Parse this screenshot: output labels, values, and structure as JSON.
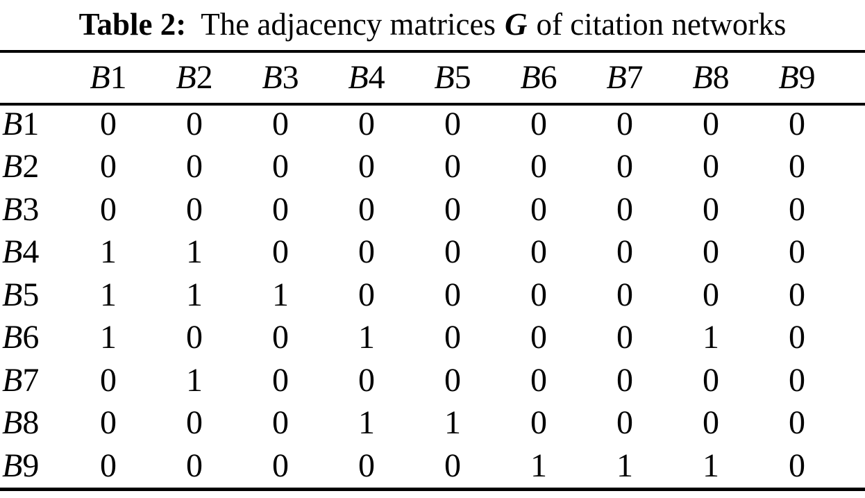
{
  "title": {
    "bold_label": "Table 2:",
    "text_before_g": "The adjacency matrices",
    "matrix_symbol": "G",
    "text_after_g": "of citation networks"
  },
  "table": {
    "corner_label": "",
    "columns": [
      "B1",
      "B2",
      "B3",
      "B4",
      "B5",
      "B6",
      "B7",
      "B8",
      "B9"
    ],
    "rows": [
      {
        "label": "B1",
        "values": [
          "0",
          "0",
          "0",
          "0",
          "0",
          "0",
          "0",
          "0",
          "0"
        ]
      },
      {
        "label": "B2",
        "values": [
          "0",
          "0",
          "0",
          "0",
          "0",
          "0",
          "0",
          "0",
          "0"
        ]
      },
      {
        "label": "B3",
        "values": [
          "0",
          "0",
          "0",
          "0",
          "0",
          "0",
          "0",
          "0",
          "0"
        ]
      },
      {
        "label": "B4",
        "values": [
          "1",
          "1",
          "0",
          "0",
          "0",
          "0",
          "0",
          "0",
          "0"
        ]
      },
      {
        "label": "B5",
        "values": [
          "1",
          "1",
          "1",
          "0",
          "0",
          "0",
          "0",
          "0",
          "0"
        ]
      },
      {
        "label": "B6",
        "values": [
          "1",
          "0",
          "0",
          "1",
          "0",
          "0",
          "0",
          "1",
          "0"
        ]
      },
      {
        "label": "B7",
        "values": [
          "0",
          "1",
          "0",
          "0",
          "0",
          "0",
          "0",
          "0",
          "0"
        ]
      },
      {
        "label": "B8",
        "values": [
          "0",
          "0",
          "0",
          "1",
          "1",
          "0",
          "0",
          "0",
          "0"
        ]
      },
      {
        "label": "B9",
        "values": [
          "0",
          "0",
          "0",
          "0",
          "0",
          "1",
          "1",
          "1",
          "0"
        ]
      }
    ]
  },
  "colors": {
    "background": "#ffffff",
    "text": "#000000",
    "rule": "#000000"
  }
}
